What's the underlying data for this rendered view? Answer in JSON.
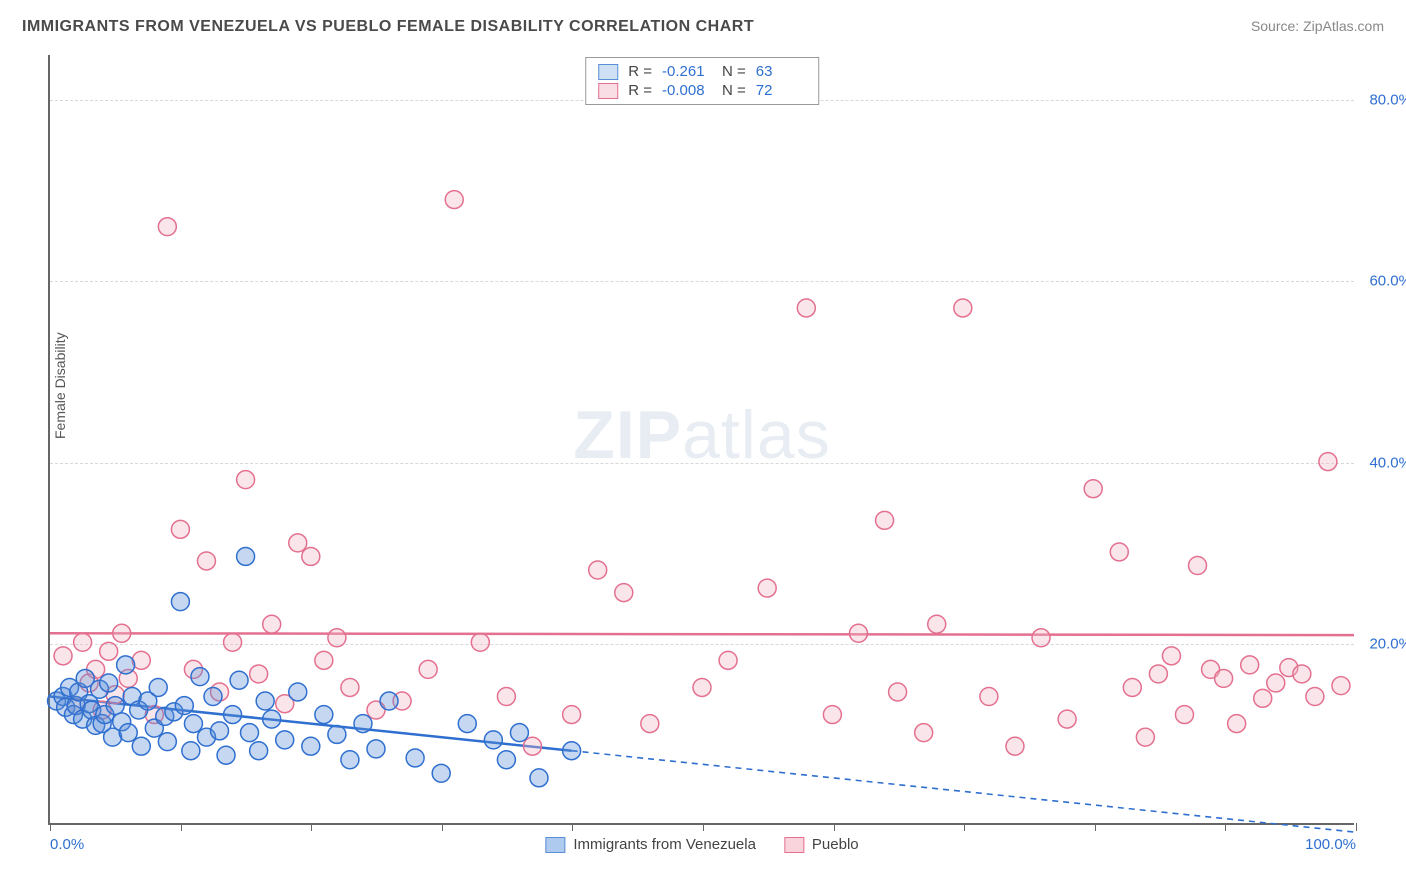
{
  "title": "IMMIGRANTS FROM VENEZUELA VS PUEBLO FEMALE DISABILITY CORRELATION CHART",
  "source": "Source: ZipAtlas.com",
  "ylabel": "Female Disability",
  "watermark_bold": "ZIP",
  "watermark_rest": "atlas",
  "background_color": "#ffffff",
  "grid_color": "#d8d8d8",
  "axis_color": "#666666",
  "value_color": "#2f6fd0",
  "xlim": [
    0,
    100
  ],
  "ylim": [
    0,
    85
  ],
  "yticks": [
    20,
    40,
    60,
    80
  ],
  "ytick_labels": [
    "20.0%",
    "40.0%",
    "60.0%",
    "80.0%"
  ],
  "xticks": [
    0,
    10,
    20,
    30,
    40,
    50,
    60,
    70,
    80,
    90,
    100
  ],
  "xtick_labels_show": {
    "0": "0.0%",
    "100": "100.0%"
  },
  "marker_radius": 9,
  "marker_stroke_width": 1.5,
  "marker_fill_opacity": 0.35,
  "regression_line_width": 2.5,
  "dash_pattern": "6,5",
  "series": [
    {
      "name": "Immigrants from Venezuela",
      "color": "#5b8fd6",
      "stroke": "#2f6fd0",
      "R": "-0.261",
      "N": "63",
      "reg_start": [
        0,
        14.0
      ],
      "reg_solid_end": [
        40,
        8.0
      ],
      "reg_dash_end": [
        100,
        -1.0
      ],
      "points": [
        [
          0.5,
          13.5
        ],
        [
          1,
          14
        ],
        [
          1.2,
          12.8
        ],
        [
          1.5,
          15
        ],
        [
          1.8,
          12
        ],
        [
          2,
          13
        ],
        [
          2.2,
          14.5
        ],
        [
          2.5,
          11.5
        ],
        [
          2.7,
          16
        ],
        [
          3,
          13.2
        ],
        [
          3.2,
          12.5
        ],
        [
          3.5,
          10.8
        ],
        [
          3.8,
          14.8
        ],
        [
          4,
          11
        ],
        [
          4.2,
          12
        ],
        [
          4.5,
          15.5
        ],
        [
          4.8,
          9.5
        ],
        [
          5,
          13
        ],
        [
          5.5,
          11.2
        ],
        [
          5.8,
          17.5
        ],
        [
          6,
          10
        ],
        [
          6.3,
          14
        ],
        [
          6.8,
          12.5
        ],
        [
          7,
          8.5
        ],
        [
          7.5,
          13.5
        ],
        [
          8,
          10.5
        ],
        [
          8.3,
          15
        ],
        [
          8.8,
          11.8
        ],
        [
          9,
          9
        ],
        [
          9.5,
          12.3
        ],
        [
          10,
          24.5
        ],
        [
          10.3,
          13
        ],
        [
          10.8,
          8
        ],
        [
          11,
          11
        ],
        [
          11.5,
          16.2
        ],
        [
          12,
          9.5
        ],
        [
          12.5,
          14
        ],
        [
          13,
          10.2
        ],
        [
          13.5,
          7.5
        ],
        [
          14,
          12
        ],
        [
          14.5,
          15.8
        ],
        [
          15,
          29.5
        ],
        [
          15.3,
          10
        ],
        [
          16,
          8
        ],
        [
          16.5,
          13.5
        ],
        [
          17,
          11.5
        ],
        [
          18,
          9.2
        ],
        [
          19,
          14.5
        ],
        [
          20,
          8.5
        ],
        [
          21,
          12
        ],
        [
          22,
          9.8
        ],
        [
          23,
          7
        ],
        [
          24,
          11
        ],
        [
          25,
          8.2
        ],
        [
          26,
          13.5
        ],
        [
          28,
          7.2
        ],
        [
          30,
          5.5
        ],
        [
          32,
          11
        ],
        [
          34,
          9.2
        ],
        [
          35,
          7
        ],
        [
          36,
          10
        ],
        [
          37.5,
          5
        ],
        [
          40,
          8
        ]
      ]
    },
    {
      "name": "Pueblo",
      "color": "#f2b6c4",
      "stroke": "#e4708f",
      "R": "-0.008",
      "N": "72",
      "reg_start": [
        0,
        21.0
      ],
      "reg_solid_end": [
        100,
        20.8
      ],
      "reg_dash_end": null,
      "points": [
        [
          1,
          18.5
        ],
        [
          2,
          13
        ],
        [
          2.5,
          20
        ],
        [
          3,
          15.5
        ],
        [
          3.5,
          17
        ],
        [
          4,
          12.5
        ],
        [
          4.5,
          19
        ],
        [
          5,
          14.2
        ],
        [
          5.5,
          21
        ],
        [
          6,
          16
        ],
        [
          7,
          18
        ],
        [
          8,
          12
        ],
        [
          9,
          66
        ],
        [
          10,
          32.5
        ],
        [
          11,
          17
        ],
        [
          12,
          29
        ],
        [
          13,
          14.5
        ],
        [
          14,
          20
        ],
        [
          15,
          38
        ],
        [
          16,
          16.5
        ],
        [
          17,
          22
        ],
        [
          18,
          13.2
        ],
        [
          19,
          31
        ],
        [
          20,
          29.5
        ],
        [
          21,
          18
        ],
        [
          22,
          20.5
        ],
        [
          23,
          15
        ],
        [
          25,
          12.5
        ],
        [
          27,
          13.5
        ],
        [
          29,
          17
        ],
        [
          31,
          69
        ],
        [
          33,
          20
        ],
        [
          35,
          14
        ],
        [
          37,
          8.5
        ],
        [
          40,
          12
        ],
        [
          42,
          28
        ],
        [
          44,
          25.5
        ],
        [
          46,
          11
        ],
        [
          50,
          15
        ],
        [
          52,
          18
        ],
        [
          55,
          26
        ],
        [
          58,
          57
        ],
        [
          60,
          12
        ],
        [
          62,
          21
        ],
        [
          64,
          33.5
        ],
        [
          65,
          14.5
        ],
        [
          67,
          10
        ],
        [
          68,
          22
        ],
        [
          70,
          57
        ],
        [
          72,
          14
        ],
        [
          74,
          8.5
        ],
        [
          76,
          20.5
        ],
        [
          78,
          11.5
        ],
        [
          80,
          37
        ],
        [
          82,
          30
        ],
        [
          83,
          15
        ],
        [
          84,
          9.5
        ],
        [
          85,
          16.5
        ],
        [
          86,
          18.5
        ],
        [
          87,
          12
        ],
        [
          88,
          28.5
        ],
        [
          89,
          17
        ],
        [
          90,
          16
        ],
        [
          91,
          11
        ],
        [
          92,
          17.5
        ],
        [
          93,
          13.8
        ],
        [
          94,
          15.5
        ],
        [
          95,
          17.2
        ],
        [
          96,
          16.5
        ],
        [
          97,
          14
        ],
        [
          98,
          40
        ],
        [
          99,
          15.2
        ]
      ]
    }
  ],
  "bottom_legend": [
    {
      "label": "Immigrants from Venezuela",
      "fill": "#aecbef",
      "stroke": "#5b8fd6"
    },
    {
      "label": "Pueblo",
      "fill": "#f9d4dd",
      "stroke": "#e4708f"
    }
  ],
  "stats_box_swatches": [
    {
      "fill": "#cfe0f5",
      "stroke": "#5b8fd6"
    },
    {
      "fill": "#fadee6",
      "stroke": "#e4708f"
    }
  ]
}
